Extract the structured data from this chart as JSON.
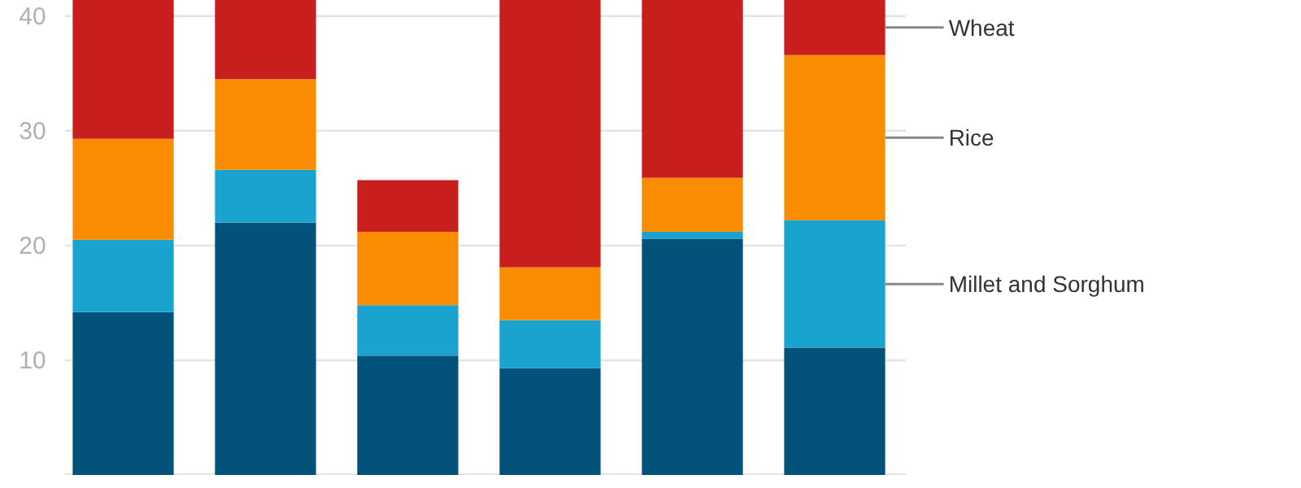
{
  "chart_data": {
    "type": "bar",
    "stacked": true,
    "categories": [
      null,
      null,
      null,
      null,
      null,
      null
    ],
    "series": [
      {
        "color": "#02527a",
        "values": [
          14.2,
          22.0,
          10.4,
          9.3,
          20.6,
          11.1
        ]
      },
      {
        "name": "Millet and Sorghum",
        "color": "#1aa3cf",
        "values": [
          6.3,
          4.6,
          4.4,
          4.2,
          0.6,
          11.1
        ]
      },
      {
        "name": "Rice",
        "color": "#f98c00",
        "values": [
          8.8,
          7.9,
          6.4,
          4.6,
          4.7,
          14.4
        ]
      },
      {
        "name": "Wheat",
        "color": "#c81e1e",
        "values": [
          12.1,
          6.9,
          4.5,
          23.3,
          15.5,
          4.8
        ]
      }
    ],
    "ylim": [
      0,
      41.4
    ],
    "yticks": [
      10,
      20,
      30,
      40
    ],
    "grid": "y"
  }
}
